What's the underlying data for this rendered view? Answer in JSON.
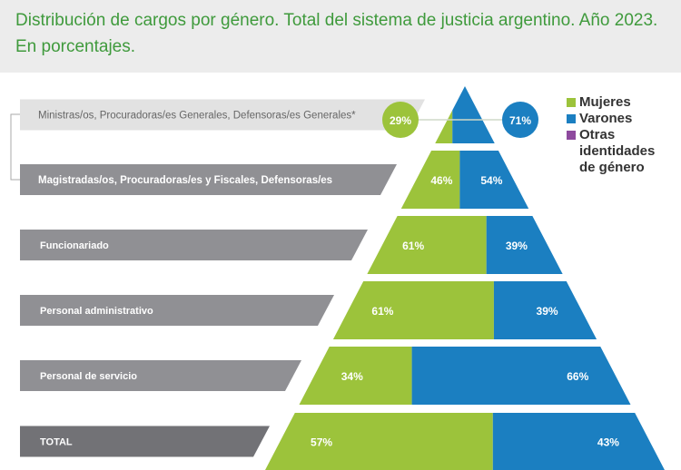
{
  "title_line1": "Distribución de cargos por género. Total del sistema de justicia argentino. Año 2023.",
  "title_line2": "En porcentajes.",
  "chart_data": {
    "type": "bar",
    "subtype": "pyramid-stacked-100",
    "title": "Distribución de cargos por género. Total del sistema de justicia argentino. Año 2023. En porcentajes.",
    "categories": [
      "Ministras/os, Procuradoras/es Generales, Defensoras/es Generales*",
      "Magistradas/os, Procuradoras/es y Fiscales, Defensoras/es",
      "Funcionariado",
      "Personal administrativo",
      "Personal de servicio",
      "TOTAL"
    ],
    "series": [
      {
        "name": "Mujeres",
        "color": "#9cc33b",
        "values": [
          29,
          46,
          61,
          61,
          34,
          57
        ]
      },
      {
        "name": "Varones",
        "color": "#1b7fc1",
        "values": [
          71,
          54,
          39,
          39,
          66,
          43
        ]
      },
      {
        "name": "Otras identidades de género",
        "color": "#8e4a9e",
        "values": [
          0,
          0,
          0,
          0,
          0,
          0
        ]
      }
    ],
    "legend": [
      "Mujeres",
      "Varones",
      "Otras identidades de género"
    ],
    "legend_position": "top-right"
  }
}
